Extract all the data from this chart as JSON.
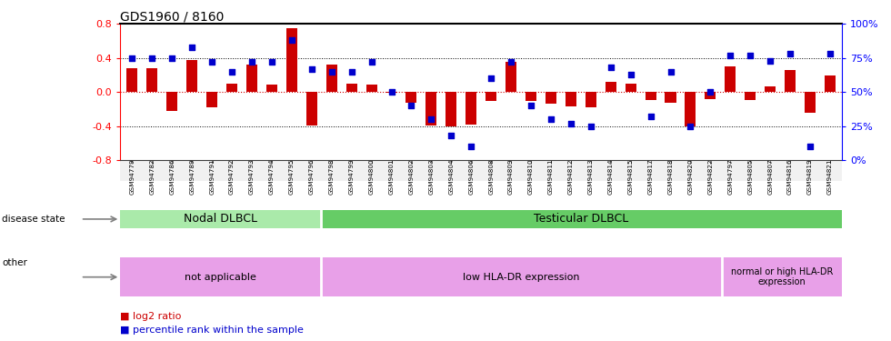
{
  "title": "GDS1960 / 8160",
  "samples": [
    "GSM94779",
    "GSM94782",
    "GSM94786",
    "GSM94789",
    "GSM94791",
    "GSM94792",
    "GSM94793",
    "GSM94794",
    "GSM94795",
    "GSM94796",
    "GSM94798",
    "GSM94799",
    "GSM94800",
    "GSM94801",
    "GSM94802",
    "GSM94803",
    "GSM94804",
    "GSM94806",
    "GSM94808",
    "GSM94809",
    "GSM94810",
    "GSM94811",
    "GSM94812",
    "GSM94813",
    "GSM94814",
    "GSM94815",
    "GSM94817",
    "GSM94818",
    "GSM94820",
    "GSM94822",
    "GSM94797",
    "GSM94805",
    "GSM94807",
    "GSM94816",
    "GSM94819",
    "GSM94821"
  ],
  "log2_ratio": [
    0.28,
    0.28,
    -0.22,
    0.38,
    -0.18,
    0.1,
    0.32,
    0.09,
    0.75,
    -0.39,
    0.32,
    0.1,
    0.09,
    -0.01,
    -0.12,
    -0.39,
    -0.4,
    -0.38,
    -0.1,
    0.35,
    -0.1,
    -0.14,
    -0.17,
    -0.18,
    0.12,
    0.1,
    -0.09,
    -0.12,
    -0.4,
    -0.08,
    0.3,
    -0.09,
    0.07,
    0.26,
    -0.24,
    0.2
  ],
  "percentile": [
    75,
    75,
    75,
    83,
    72,
    65,
    72,
    72,
    88,
    67,
    65,
    65,
    72,
    50,
    40,
    30,
    18,
    10,
    60,
    72,
    40,
    30,
    27,
    25,
    68,
    63,
    32,
    65,
    25,
    50,
    77,
    77,
    73,
    78,
    10,
    78
  ],
  "bar_color": "#cc0000",
  "dot_color": "#0000cc",
  "hline0_color": "#cc0000",
  "dotted_color": "#000000",
  "nodal_count": 10,
  "disease_state_nodal": "Nodal DLBCL",
  "disease_state_testicular": "Testicular DLBCL",
  "not_applicable_count": 10,
  "low_hla_count": 20,
  "high_hla_count": 6,
  "other_not_applicable": "not applicable",
  "other_low": "low HLA-DR expression",
  "other_high": "normal or high HLA-DR\nexpression",
  "color_nodal": "#aaeaaa",
  "color_testicular": "#66cc66",
  "color_not_applicable": "#e8a0e8",
  "color_low": "#e8a0e8",
  "color_high": "#e8a0e8",
  "legend_bar_label": "log2 ratio",
  "legend_dot_label": "percentile rank within the sample",
  "ylim_left": [
    -0.8,
    0.8
  ],
  "ylim_right": [
    0,
    100
  ],
  "yticks_left": [
    -0.8,
    -0.4,
    0.0,
    0.4,
    0.8
  ],
  "yticks_right": [
    0,
    25,
    50,
    75,
    100
  ],
  "ytick_labels_right": [
    "0%",
    "25%",
    "50%",
    "75%",
    "100%"
  ]
}
